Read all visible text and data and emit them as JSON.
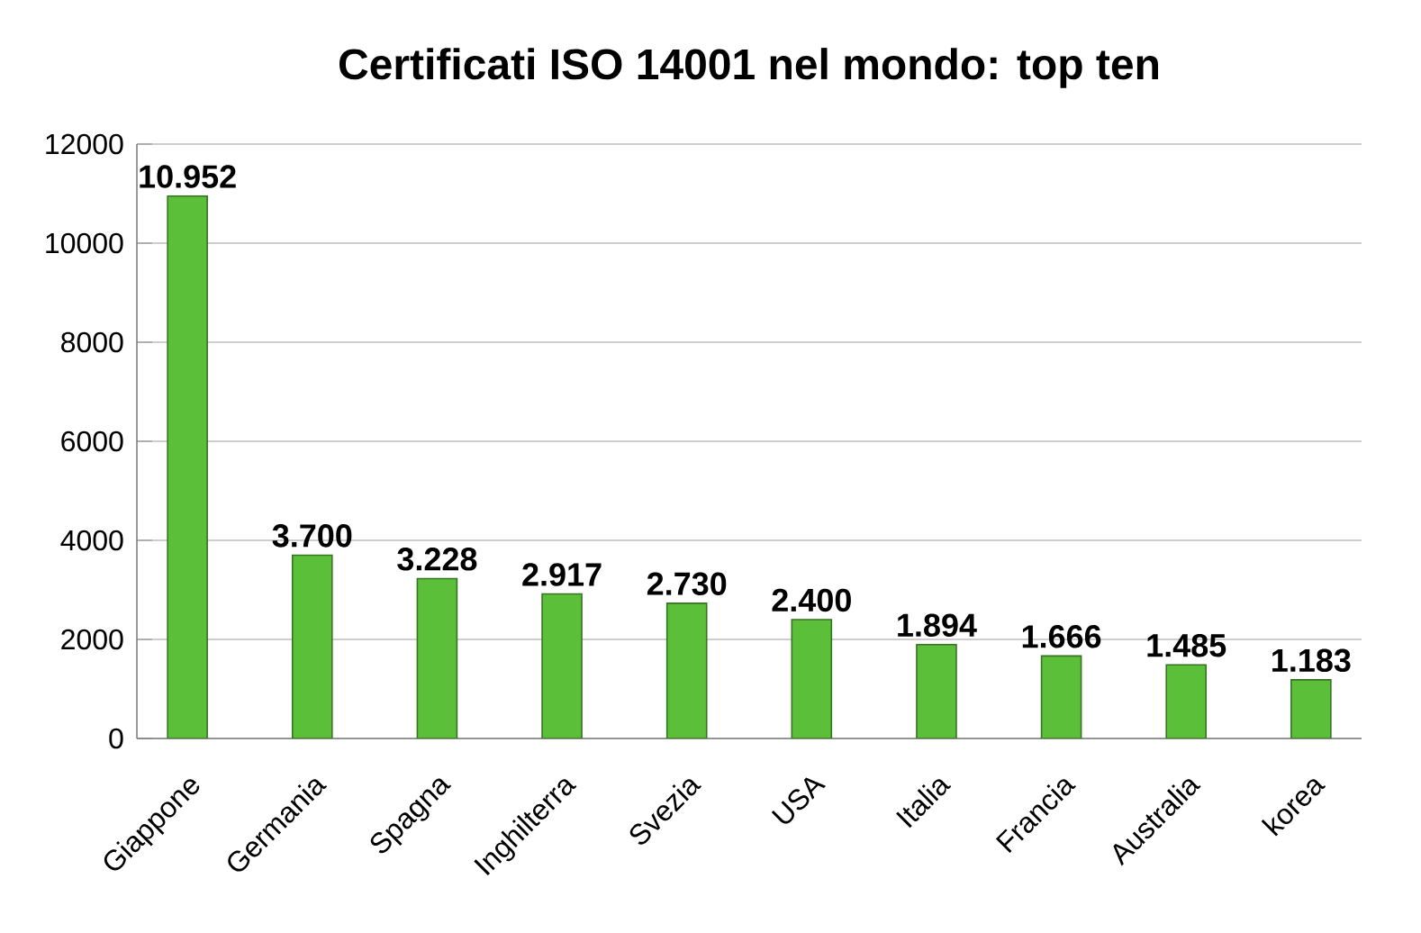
{
  "chart_data": {
    "type": "bar",
    "title": "Certificati ISO 14001 nel mondo: top ten",
    "categories": [
      "Giappone",
      "Germania",
      "Spagna",
      "Inghilterra",
      "Svezia",
      "USA",
      "Italia",
      "Francia",
      "Australia",
      "korea"
    ],
    "values": [
      10952,
      3700,
      3228,
      2917,
      2730,
      2400,
      1894,
      1666,
      1485,
      1183
    ],
    "value_labels": [
      "10.952",
      "3.700",
      "3.228",
      "2.917",
      "2.730",
      "2.400",
      "1.894",
      "1.666",
      "1.485",
      "1.183"
    ],
    "color": "#5cbf3a",
    "ylim": [
      0,
      12000
    ],
    "yticks": [
      0,
      2000,
      4000,
      6000,
      8000,
      10000,
      12000
    ],
    "grid": "y"
  }
}
